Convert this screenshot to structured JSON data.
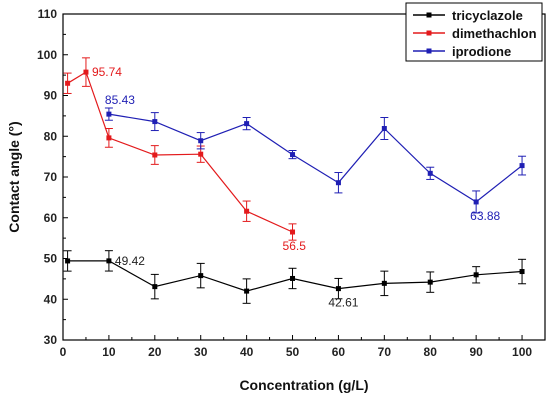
{
  "chart_data": {
    "type": "line",
    "title": "",
    "xlabel": "Concentration (g/L)",
    "ylabel": "Contact angle (°)",
    "xlim": [
      0,
      105
    ],
    "ylim": [
      30,
      110
    ],
    "xticks": [
      0,
      10,
      20,
      30,
      40,
      50,
      60,
      70,
      80,
      90,
      100
    ],
    "yticks": [
      30,
      40,
      50,
      60,
      70,
      80,
      90,
      100,
      110
    ],
    "legend_position": "top-right",
    "grid": false,
    "series": [
      {
        "name": "tricyclazole",
        "color": "#000000",
        "marker": "square",
        "x": [
          1,
          10,
          20,
          30,
          40,
          50,
          60,
          70,
          80,
          90,
          100
        ],
        "y": [
          49.4,
          49.42,
          43.1,
          45.8,
          42.0,
          45.1,
          42.61,
          43.9,
          44.2,
          46.0,
          46.8
        ],
        "err": [
          2.5,
          2.5,
          3.0,
          3.0,
          3.0,
          2.5,
          2.5,
          3.0,
          2.5,
          2.0,
          3.0
        ]
      },
      {
        "name": "dimethachlon",
        "color": "#e31a1c",
        "marker": "square",
        "x": [
          1,
          5,
          10,
          20,
          30,
          40,
          50
        ],
        "y": [
          93.0,
          95.74,
          79.6,
          75.4,
          75.6,
          61.6,
          56.5
        ],
        "err": [
          2.5,
          3.5,
          2.3,
          2.3,
          2.0,
          2.5,
          2.0
        ]
      },
      {
        "name": "iprodione",
        "color": "#1f1fb4",
        "marker": "square",
        "x": [
          10,
          20,
          30,
          40,
          50,
          60,
          70,
          80,
          90,
          100
        ],
        "y": [
          85.43,
          83.6,
          78.9,
          83.1,
          75.5,
          68.6,
          81.9,
          70.9,
          63.88,
          72.8
        ],
        "err": [
          1.5,
          2.2,
          2.0,
          1.5,
          1.0,
          2.5,
          2.7,
          1.5,
          2.7,
          2.3
        ]
      }
    ],
    "annotations": [
      {
        "text": "95.74",
        "series": 1,
        "point": 1,
        "color": "#e31a1c",
        "placement": "right"
      },
      {
        "text": "85.43",
        "series": 2,
        "point": 0,
        "color": "#1f1fb4",
        "placement": "above"
      },
      {
        "text": "49.42",
        "series": 0,
        "point": 1,
        "color": "#222222",
        "placement": "right"
      },
      {
        "text": "56.5",
        "series": 1,
        "point": 6,
        "color": "#e31a1c",
        "placement": "below"
      },
      {
        "text": "42.61",
        "series": 0,
        "point": 6,
        "color": "#222222",
        "placement": "below"
      },
      {
        "text": "63.88",
        "series": 2,
        "point": 8,
        "color": "#1f1fb4",
        "placement": "below-right"
      }
    ]
  }
}
